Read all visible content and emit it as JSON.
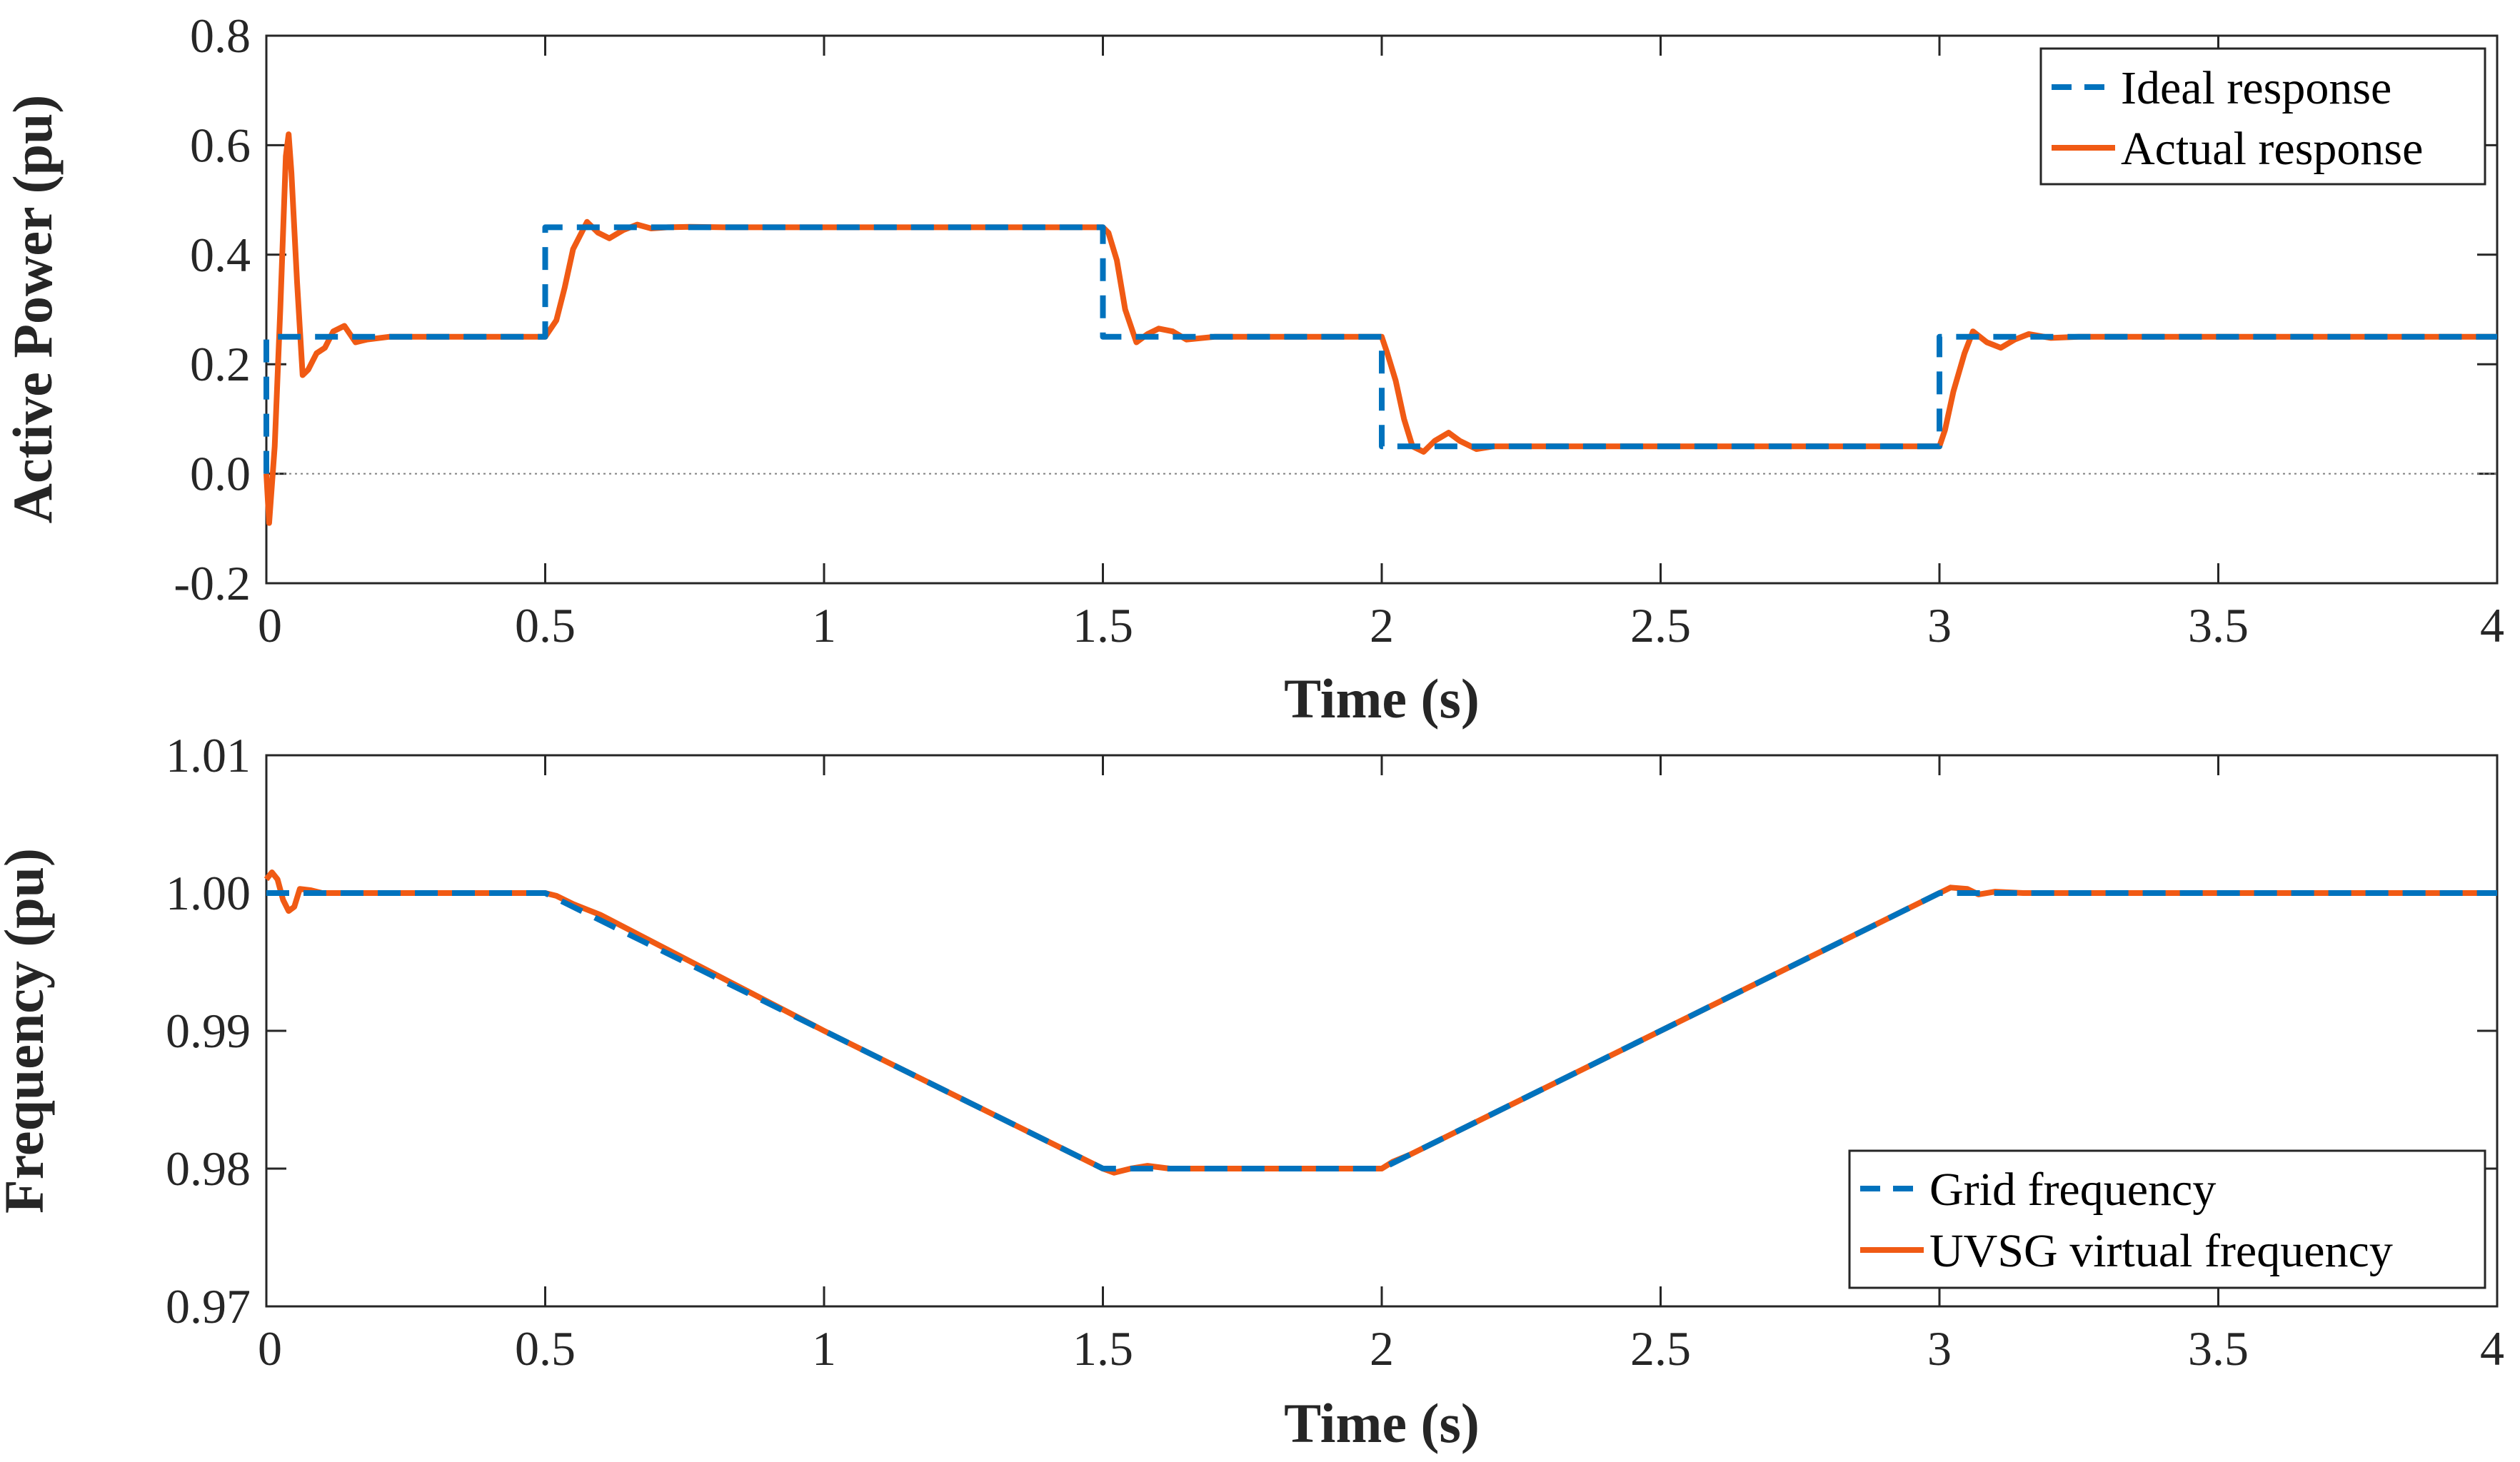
{
  "colors": {
    "ideal": "#0072BD",
    "actual": "#F05A14",
    "axis": "#262626",
    "zero_line": "#808080"
  },
  "chart_data": [
    {
      "type": "line",
      "title": "",
      "xlabel": "Time (s)",
      "ylabel": "Active Power (pu)",
      "xlim": [
        0,
        4
      ],
      "ylim": [
        -0.2,
        0.8
      ],
      "xticks": [
        0,
        0.5,
        1,
        1.5,
        2,
        2.5,
        3,
        3.5,
        4
      ],
      "xtick_labels": [
        "0",
        "0.5",
        "1",
        "1.5",
        "2",
        "2.5",
        "3",
        "3.5",
        "4"
      ],
      "yticks": [
        -0.2,
        0,
        0.2,
        0.4,
        0.6,
        0.8
      ],
      "ytick_labels": [
        "-0.2",
        "0.0",
        "0.2",
        "0.4",
        "0.6",
        "0.8"
      ],
      "legend_position": "top-right",
      "grid": false,
      "series": [
        {
          "name": "Ideal response",
          "style": "dashed",
          "color": "#0072BD",
          "x": [
            0,
            0,
            0.5,
            0.5,
            1.5,
            1.5,
            2.0,
            2.0,
            3.0,
            3.0,
            4.0
          ],
          "y": [
            0,
            0.25,
            0.25,
            0.45,
            0.45,
            0.25,
            0.25,
            0.05,
            0.05,
            0.25,
            0.25
          ]
        },
        {
          "name": "Actual response",
          "style": "solid",
          "color": "#F05A14",
          "x": [
            0,
            0.005,
            0.015,
            0.025,
            0.035,
            0.04,
            0.045,
            0.055,
            0.065,
            0.075,
            0.09,
            0.105,
            0.12,
            0.14,
            0.16,
            0.18,
            0.22,
            0.3,
            0.5,
            0.52,
            0.535,
            0.55,
            0.575,
            0.595,
            0.615,
            0.64,
            0.665,
            0.69,
            0.72,
            0.76,
            0.82,
            1.5,
            1.51,
            1.525,
            1.54,
            1.56,
            1.58,
            1.6,
            1.625,
            1.65,
            1.7,
            1.8,
            2.0,
            2.01,
            2.025,
            2.04,
            2.055,
            2.075,
            2.095,
            2.12,
            2.14,
            2.17,
            2.2,
            2.3,
            3.0,
            3.01,
            3.025,
            3.045,
            3.06,
            3.085,
            3.11,
            3.135,
            3.16,
            3.2,
            3.25,
            3.35,
            4.0
          ],
          "y": [
            0.0,
            -0.09,
            0.05,
            0.3,
            0.58,
            0.62,
            0.55,
            0.35,
            0.18,
            0.19,
            0.22,
            0.23,
            0.26,
            0.27,
            0.24,
            0.245,
            0.25,
            0.25,
            0.25,
            0.28,
            0.34,
            0.41,
            0.46,
            0.44,
            0.43,
            0.445,
            0.455,
            0.448,
            0.45,
            0.451,
            0.45,
            0.45,
            0.44,
            0.39,
            0.3,
            0.24,
            0.255,
            0.265,
            0.26,
            0.245,
            0.25,
            0.25,
            0.25,
            0.22,
            0.17,
            0.1,
            0.05,
            0.04,
            0.06,
            0.075,
            0.06,
            0.045,
            0.05,
            0.05,
            0.05,
            0.08,
            0.15,
            0.22,
            0.26,
            0.24,
            0.23,
            0.245,
            0.255,
            0.248,
            0.25,
            0.25,
            0.25
          ]
        }
      ]
    },
    {
      "type": "line",
      "title": "",
      "xlabel": "Time (s)",
      "ylabel": "Frequency (pu)",
      "xlim": [
        0,
        4
      ],
      "ylim": [
        0.97,
        1.01
      ],
      "xticks": [
        0,
        0.5,
        1,
        1.5,
        2,
        2.5,
        3,
        3.5,
        4
      ],
      "xtick_labels": [
        "0",
        "0.5",
        "1",
        "1.5",
        "2",
        "2.5",
        "3",
        "3.5",
        "4"
      ],
      "yticks": [
        0.97,
        0.98,
        0.99,
        1.0,
        1.01
      ],
      "ytick_labels": [
        "0.97",
        "0.98",
        "0.99",
        "1.00",
        "1.01"
      ],
      "legend_position": "bottom-right",
      "grid": false,
      "series": [
        {
          "name": "Grid frequency",
          "style": "dashed",
          "color": "#0072BD",
          "x": [
            0,
            0.5,
            1.5,
            2.0,
            3.0,
            4.0
          ],
          "y": [
            1.0,
            1.0,
            0.98,
            0.98,
            1.0,
            1.0
          ]
        },
        {
          "name": "UVSG virtual frequency",
          "style": "solid",
          "color": "#F05A14",
          "x": [
            0,
            0.01,
            0.02,
            0.03,
            0.04,
            0.05,
            0.06,
            0.08,
            0.1,
            0.12,
            0.5,
            0.52,
            0.55,
            0.6,
            1.0,
            1.5,
            1.52,
            1.55,
            1.58,
            1.62,
            1.7,
            2.0,
            2.02,
            2.05,
            2.1,
            2.5,
            3.0,
            3.02,
            3.05,
            3.07,
            3.1,
            3.15,
            4.0
          ],
          "y": [
            1.001,
            1.0015,
            1.001,
            0.9995,
            0.9987,
            0.999,
            1.0003,
            1.0002,
            1.0,
            1.0,
            1.0,
            0.9998,
            0.9992,
            0.9984,
            0.99,
            0.98,
            0.9797,
            0.98,
            0.9802,
            0.98,
            0.98,
            0.98,
            0.9805,
            0.981,
            0.982,
            0.99,
            1.0,
            1.0004,
            1.0003,
            0.9999,
            1.0001,
            1.0,
            1.0
          ]
        }
      ]
    }
  ]
}
